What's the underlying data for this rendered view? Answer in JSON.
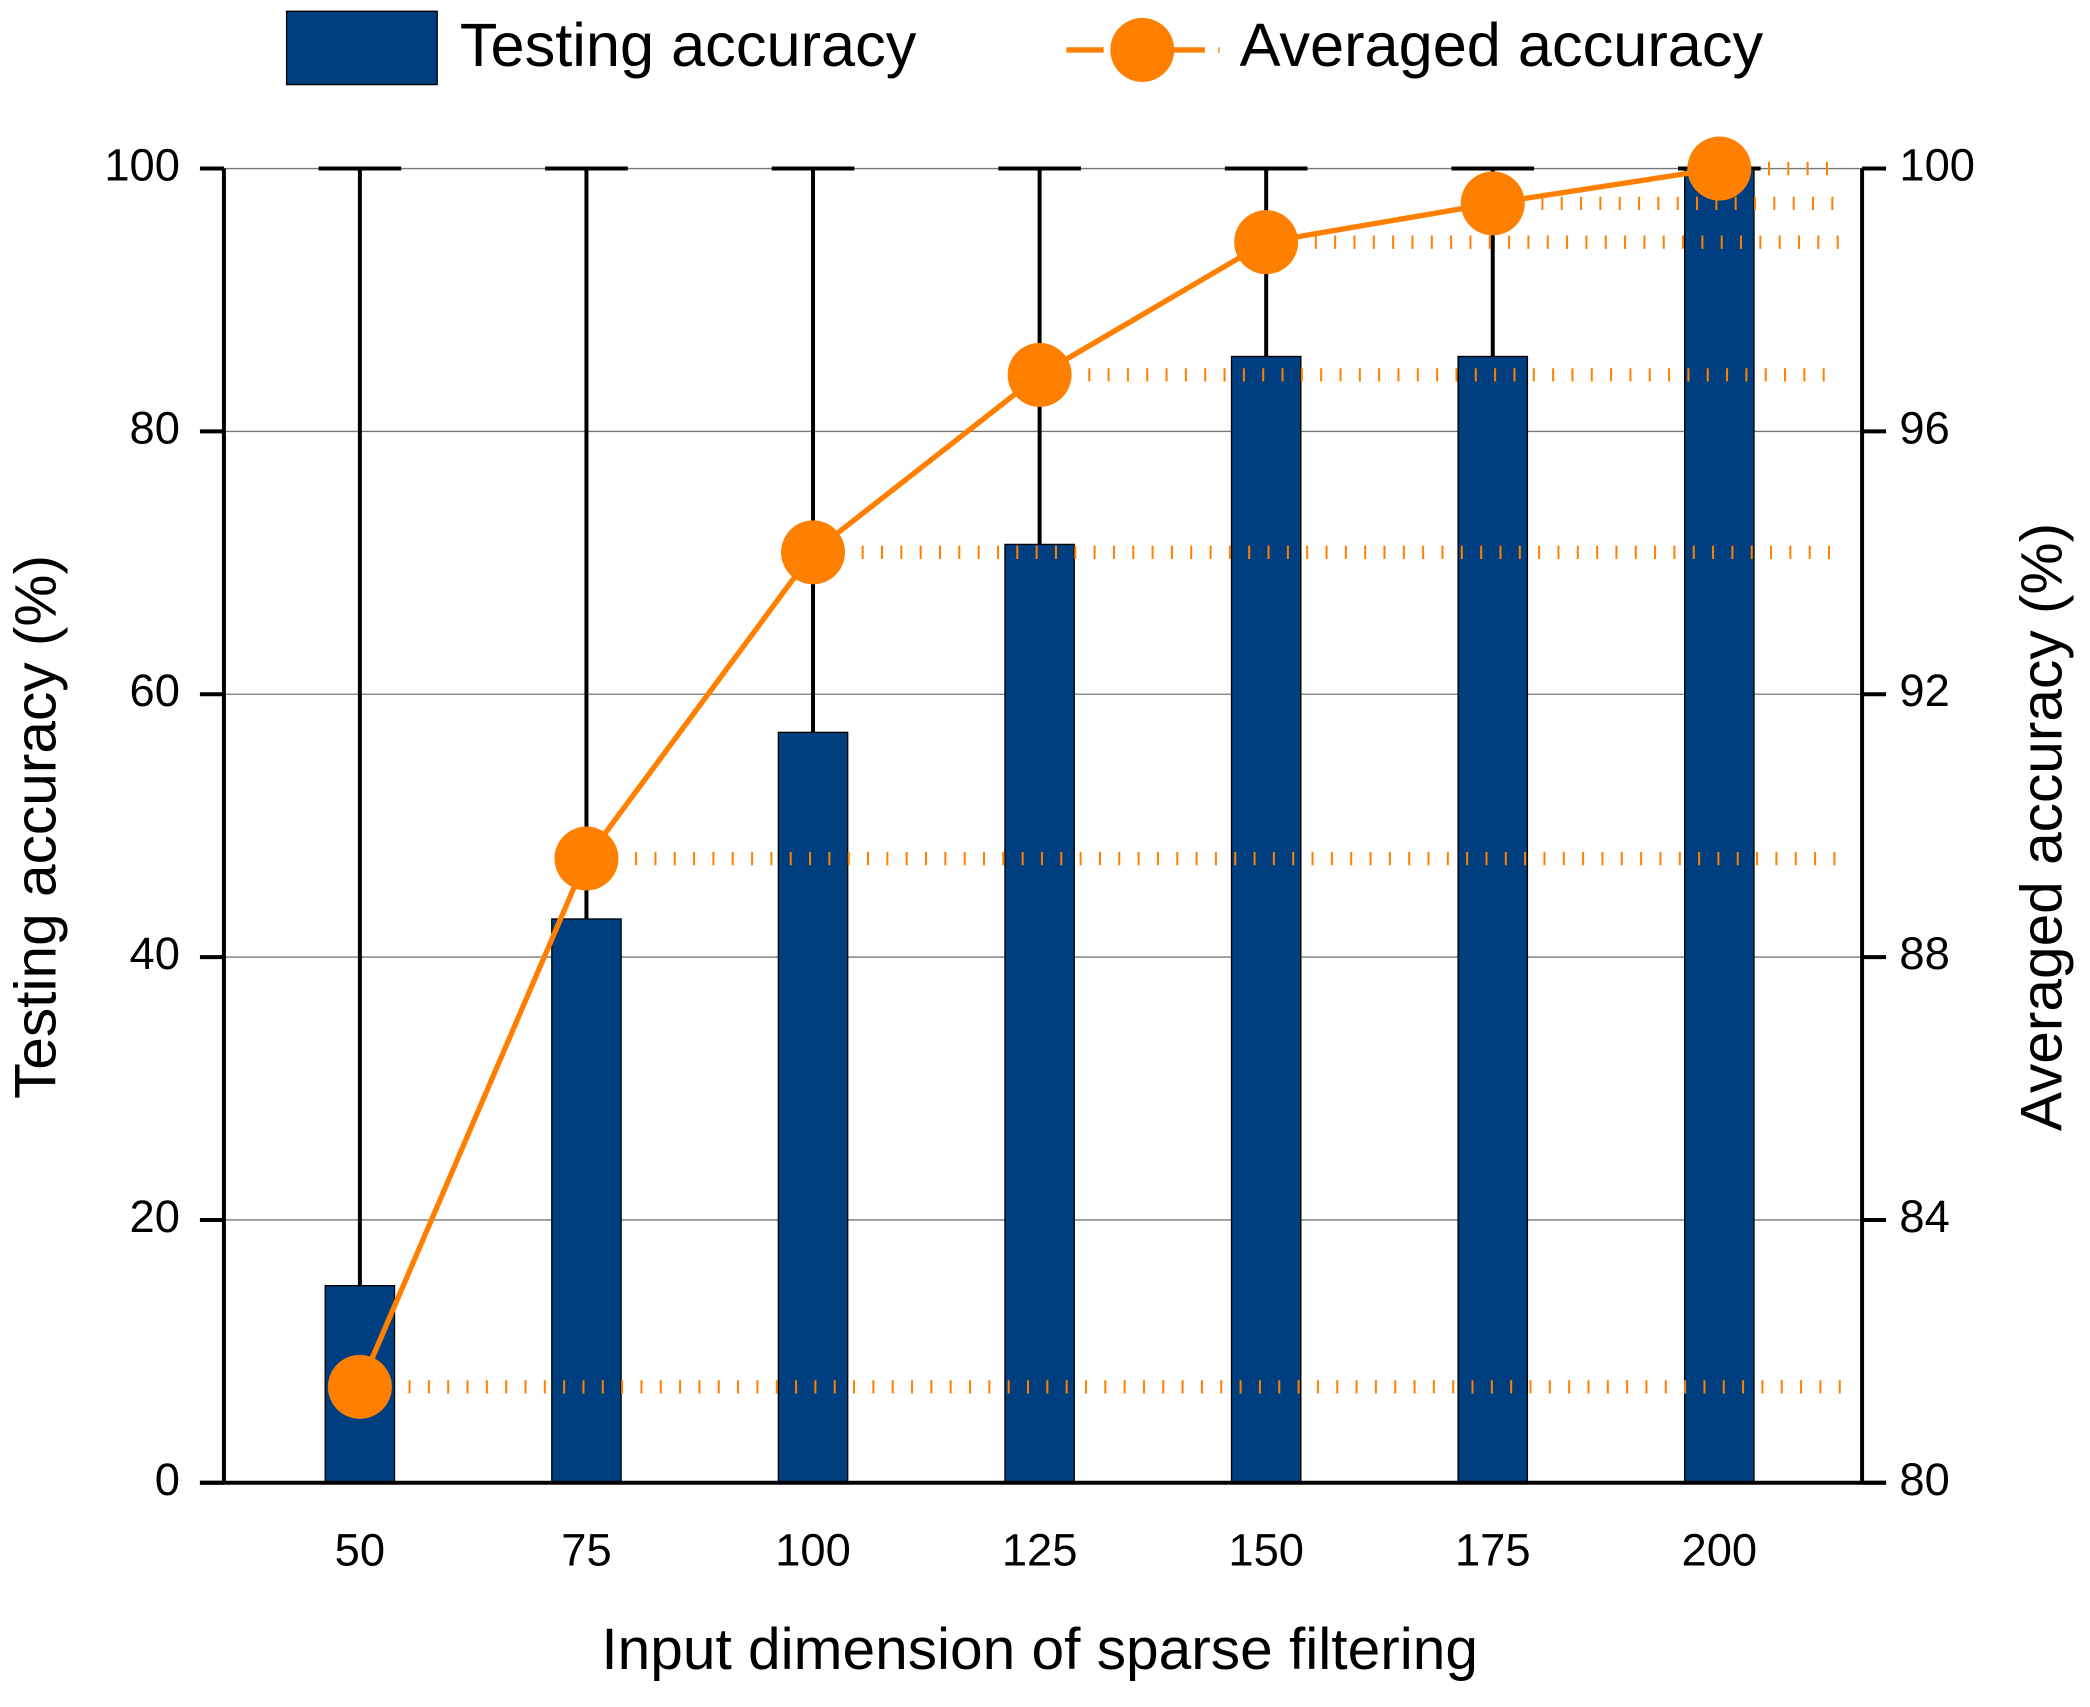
{
  "chart_data": {
    "type": "bar",
    "x_label": "Input dimension of sparse filtering",
    "y_label": "Testing accuracy (%)",
    "y2_label": "Averaged accuracy (%)",
    "categories": [
      "50",
      "75",
      "100",
      "125",
      "150",
      "175",
      "200"
    ],
    "series": [
      {
        "name": "Testing accuracy",
        "type": "bar",
        "color": "#003f7f",
        "values": [
          15,
          42.9,
          57.1,
          71.4,
          85.7,
          85.7,
          100
        ],
        "errors": [
          85,
          57.1,
          42.9,
          28.6,
          14.3,
          14.3,
          0
        ]
      },
      {
        "name": "Averaged accuracy",
        "type": "line",
        "axis": "y2",
        "color": "#ff8000",
        "values": [
          81.46,
          89.5,
          94.16,
          96.86,
          98.88,
          99.47,
          100
        ]
      }
    ],
    "ylim": [
      0,
      100
    ],
    "yticks": [
      0,
      20,
      40,
      60,
      80,
      100
    ],
    "y2lim": [
      80,
      100
    ],
    "y2ticks": [
      80,
      84,
      88,
      92,
      96,
      100
    ],
    "grid": true,
    "legend": "top"
  }
}
